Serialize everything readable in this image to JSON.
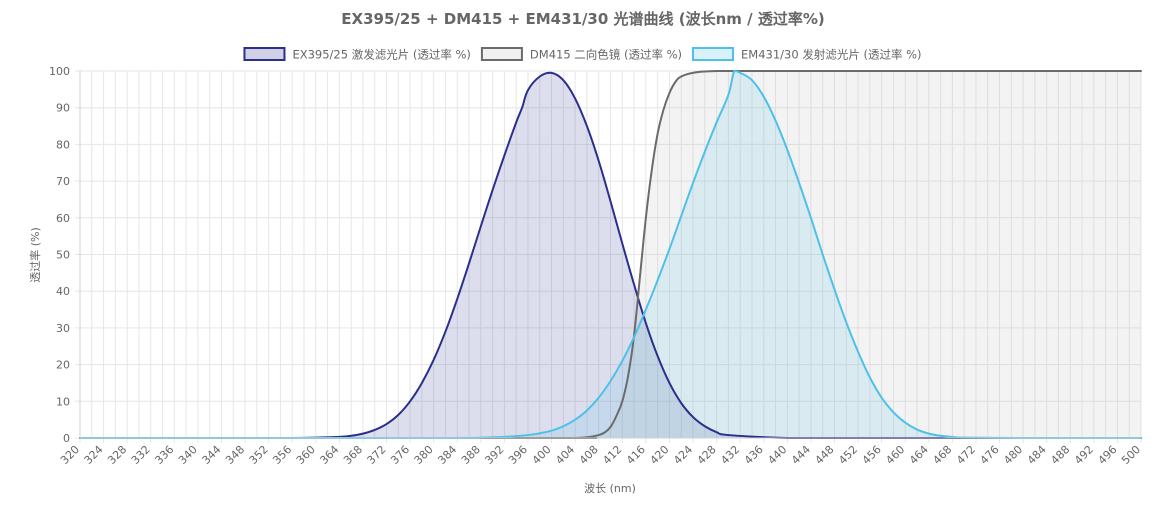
{
  "chart_data": {
    "type": "area",
    "title": "EX395/25 + DM415 + EM431/30 光谱曲线 (波长nm / 透过率%)",
    "xlabel": "波长 (nm)",
    "ylabel": "透过率 (%)",
    "xlim": [
      320,
      500
    ],
    "ylim": [
      0,
      100
    ],
    "x_ticks": [
      "320",
      "324",
      "328",
      "332",
      "336",
      "340",
      "344",
      "348",
      "352",
      "356",
      "360",
      "364",
      "368",
      "372",
      "376",
      "380",
      "384",
      "388",
      "392",
      "396",
      "400",
      "404",
      "408",
      "412",
      "416",
      "420",
      "424",
      "428",
      "432",
      "436",
      "440",
      "444",
      "448",
      "452",
      "456",
      "460",
      "464",
      "468",
      "472",
      "476",
      "480",
      "484",
      "488",
      "492",
      "496",
      "500"
    ],
    "y_ticks": [
      "0",
      "10",
      "20",
      "30",
      "40",
      "50",
      "60",
      "70",
      "80",
      "90",
      "100"
    ],
    "grid": true,
    "legend_position": "top",
    "series": [
      {
        "name": "EX395/25 激发滤光片 (透过率 %)",
        "color": "#2a2f8c",
        "fill": "rgba(42,47,140,0.16)",
        "x": [
          320,
          330,
          340,
          350,
          356,
          360,
          364,
          366,
          368,
          370,
          372,
          374,
          376,
          378,
          380,
          382,
          384,
          386,
          388,
          390,
          392,
          394,
          395,
          396,
          398,
          400,
          402,
          404,
          406,
          408,
          410,
          412,
          414,
          416,
          418,
          420,
          422,
          424,
          426,
          428,
          430,
          440,
          450,
          460,
          500
        ],
        "y": [
          0,
          0,
          0,
          0,
          0,
          0.1,
          0.3,
          0.6,
          1.2,
          2.2,
          3.8,
          6.3,
          10,
          15,
          21.3,
          29,
          37.9,
          47.6,
          57.7,
          67.6,
          77,
          86,
          90,
          94.8,
          98.5,
          99.5,
          97.5,
          92.5,
          85,
          75.5,
          64.5,
          53,
          41.8,
          31.3,
          22.3,
          15,
          9.5,
          5.7,
          3.2,
          1.6,
          0.8,
          0,
          0,
          0,
          0
        ]
      },
      {
        "name": "DM415 二向色镜 (透过率 %)",
        "color": "#6b6b6b",
        "fill": "rgba(190,190,190,0.18)",
        "x": [
          320,
          400,
          404,
          406,
          408,
          409,
          410,
          411,
          412,
          413,
          414,
          415,
          416,
          417,
          418,
          419,
          420,
          421,
          422,
          424,
          428,
          440,
          460,
          500
        ],
        "y": [
          0,
          0,
          0,
          0.2,
          0.8,
          1.5,
          3,
          6,
          10,
          17,
          28,
          44,
          60,
          73,
          83,
          89.5,
          94,
          97,
          98.5,
          99.5,
          100,
          100,
          100,
          100
        ]
      },
      {
        "name": "EM431/30 发射滤光片 (透过率 %)",
        "color": "#4fc0e8",
        "fill": "rgba(79,192,232,0.16)",
        "x": [
          320,
          380,
          388,
          392,
          396,
          398,
          400,
          402,
          404,
          406,
          408,
          410,
          412,
          414,
          416,
          418,
          420,
          422,
          424,
          426,
          428,
          430,
          431,
          432,
          434,
          436,
          438,
          440,
          442,
          444,
          446,
          448,
          450,
          452,
          454,
          456,
          458,
          460,
          462,
          464,
          466,
          468,
          470,
          480,
          500
        ],
        "y": [
          0,
          0,
          0.1,
          0.3,
          0.8,
          1.3,
          2,
          3.2,
          5,
          7.5,
          11,
          15.5,
          21,
          27.5,
          35,
          43,
          51.5,
          60.5,
          69.5,
          78,
          86,
          93.5,
          100,
          99.5,
          97.5,
          93,
          86.5,
          78.5,
          69.5,
          60,
          50,
          40.5,
          31.5,
          23.5,
          16.5,
          11,
          7,
          4.2,
          2.3,
          1.2,
          0.6,
          0.3,
          0.1,
          0,
          0
        ]
      }
    ]
  }
}
